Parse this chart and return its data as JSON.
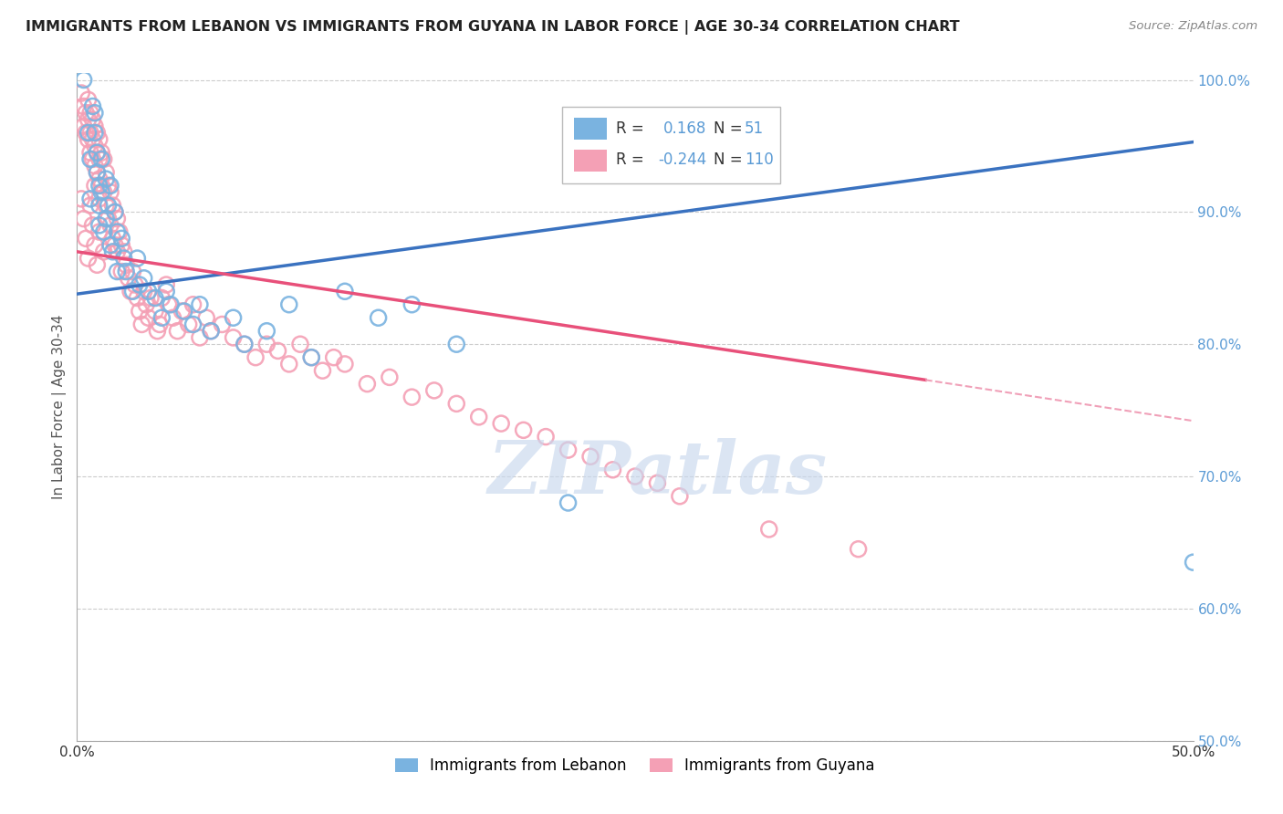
{
  "title": "IMMIGRANTS FROM LEBANON VS IMMIGRANTS FROM GUYANA IN LABOR FORCE | AGE 30-34 CORRELATION CHART",
  "source": "Source: ZipAtlas.com",
  "ylabel": "In Labor Force | Age 30-34",
  "xlim": [
    0.0,
    0.5
  ],
  "ylim": [
    0.5,
    1.005
  ],
  "xticks": [
    0.0,
    0.1,
    0.2,
    0.3,
    0.4,
    0.5
  ],
  "xtick_labels": [
    "0.0%",
    "",
    "",
    "",
    "",
    "50.0%"
  ],
  "ytick_labels_right": [
    "50.0%",
    "60.0%",
    "70.0%",
    "80.0%",
    "90.0%",
    "100.0%"
  ],
  "yticks_right": [
    0.5,
    0.6,
    0.7,
    0.8,
    0.9,
    1.0
  ],
  "lebanon_R": 0.168,
  "lebanon_N": 51,
  "guyana_R": -0.244,
  "guyana_N": 110,
  "blue_color": "#7ab3e0",
  "pink_color": "#f4a0b5",
  "blue_line_color": "#3a72c0",
  "pink_line_color": "#e8507a",
  "pink_dash_color": "#f0a0b8",
  "grid_color": "#cccccc",
  "watermark": "ZIPatlas",
  "legend_label_lebanon": "Immigrants from Lebanon",
  "legend_label_guyana": "Immigrants from Guyana",
  "leb_trend_x0": 0.0,
  "leb_trend_y0": 0.838,
  "leb_trend_x1": 0.5,
  "leb_trend_y1": 0.953,
  "guy_trend_x0": 0.0,
  "guy_trend_y0": 0.87,
  "guy_trend_x1_solid": 0.38,
  "guy_trend_y1_solid": 0.773,
  "guy_trend_x1_dash": 0.5,
  "guy_trend_y1_dash": 0.742,
  "lebanon_x": [
    0.003,
    0.005,
    0.006,
    0.006,
    0.007,
    0.008,
    0.008,
    0.009,
    0.009,
    0.01,
    0.01,
    0.01,
    0.011,
    0.011,
    0.012,
    0.013,
    0.013,
    0.014,
    0.015,
    0.015,
    0.016,
    0.017,
    0.018,
    0.018,
    0.02,
    0.021,
    0.022,
    0.025,
    0.027,
    0.028,
    0.03,
    0.032,
    0.035,
    0.038,
    0.04,
    0.042,
    0.048,
    0.052,
    0.055,
    0.06,
    0.07,
    0.075,
    0.085,
    0.095,
    0.105,
    0.12,
    0.135,
    0.15,
    0.17,
    0.22,
    0.5
  ],
  "lebanon_y": [
    1.0,
    0.96,
    0.94,
    0.91,
    0.98,
    0.975,
    0.96,
    0.945,
    0.93,
    0.92,
    0.905,
    0.89,
    0.94,
    0.915,
    0.885,
    0.925,
    0.895,
    0.905,
    0.92,
    0.875,
    0.87,
    0.9,
    0.855,
    0.885,
    0.88,
    0.865,
    0.855,
    0.84,
    0.865,
    0.845,
    0.85,
    0.84,
    0.835,
    0.82,
    0.84,
    0.83,
    0.825,
    0.815,
    0.83,
    0.81,
    0.82,
    0.8,
    0.81,
    0.83,
    0.79,
    0.84,
    0.82,
    0.83,
    0.8,
    0.68,
    0.635
  ],
  "guyana_x": [
    0.002,
    0.003,
    0.003,
    0.004,
    0.004,
    0.005,
    0.005,
    0.005,
    0.006,
    0.006,
    0.006,
    0.007,
    0.007,
    0.007,
    0.008,
    0.008,
    0.008,
    0.008,
    0.009,
    0.009,
    0.009,
    0.01,
    0.01,
    0.01,
    0.01,
    0.011,
    0.011,
    0.012,
    0.012,
    0.013,
    0.013,
    0.014,
    0.014,
    0.015,
    0.015,
    0.016,
    0.016,
    0.017,
    0.017,
    0.018,
    0.018,
    0.019,
    0.02,
    0.02,
    0.021,
    0.022,
    0.023,
    0.024,
    0.025,
    0.026,
    0.027,
    0.028,
    0.029,
    0.03,
    0.031,
    0.032,
    0.033,
    0.035,
    0.036,
    0.037,
    0.038,
    0.04,
    0.041,
    0.043,
    0.045,
    0.047,
    0.05,
    0.052,
    0.055,
    0.058,
    0.06,
    0.065,
    0.07,
    0.075,
    0.08,
    0.085,
    0.09,
    0.095,
    0.1,
    0.105,
    0.11,
    0.115,
    0.12,
    0.13,
    0.14,
    0.15,
    0.16,
    0.17,
    0.18,
    0.19,
    0.2,
    0.21,
    0.22,
    0.23,
    0.24,
    0.25,
    0.26,
    0.27,
    0.31,
    0.35,
    0.002,
    0.003,
    0.004,
    0.005,
    0.006,
    0.007,
    0.008,
    0.009,
    0.01,
    0.012
  ],
  "guyana_y": [
    0.99,
    0.98,
    0.965,
    0.975,
    0.96,
    0.985,
    0.97,
    0.955,
    0.975,
    0.96,
    0.945,
    0.97,
    0.955,
    0.94,
    0.965,
    0.95,
    0.935,
    0.92,
    0.96,
    0.945,
    0.93,
    0.955,
    0.94,
    0.925,
    0.91,
    0.945,
    0.92,
    0.94,
    0.915,
    0.93,
    0.905,
    0.92,
    0.895,
    0.915,
    0.89,
    0.905,
    0.88,
    0.9,
    0.875,
    0.895,
    0.87,
    0.885,
    0.875,
    0.855,
    0.87,
    0.86,
    0.85,
    0.84,
    0.855,
    0.845,
    0.835,
    0.825,
    0.815,
    0.84,
    0.83,
    0.82,
    0.835,
    0.825,
    0.81,
    0.815,
    0.835,
    0.845,
    0.83,
    0.82,
    0.81,
    0.825,
    0.815,
    0.83,
    0.805,
    0.82,
    0.81,
    0.815,
    0.805,
    0.8,
    0.79,
    0.8,
    0.795,
    0.785,
    0.8,
    0.79,
    0.78,
    0.79,
    0.785,
    0.77,
    0.775,
    0.76,
    0.765,
    0.755,
    0.745,
    0.74,
    0.735,
    0.73,
    0.72,
    0.715,
    0.705,
    0.7,
    0.695,
    0.685,
    0.66,
    0.645,
    0.91,
    0.895,
    0.88,
    0.865,
    0.905,
    0.89,
    0.875,
    0.86,
    0.885,
    0.87
  ]
}
